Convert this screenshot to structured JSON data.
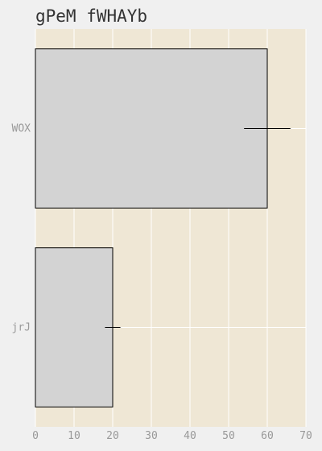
{
  "chart_data": {
    "type": "bar",
    "orientation": "horizontal",
    "title": "gPeM fWHAYb",
    "xlabel": "",
    "ylabel": "",
    "categories": [
      "WOX",
      "jrJ"
    ],
    "values": [
      60,
      20
    ],
    "errors": [
      6,
      2
    ],
    "xlim": [
      0,
      70
    ],
    "xticks": [
      0,
      10,
      20,
      30,
      40,
      50,
      60,
      70
    ],
    "grid": true,
    "colors": {
      "plot_background": "#efe7d5",
      "page_background": "#f0f0f0",
      "bar_fill": "#d3d3d3",
      "bar_edge": "#000000",
      "grid": "#ffffff",
      "error_bar": "#000000"
    }
  }
}
